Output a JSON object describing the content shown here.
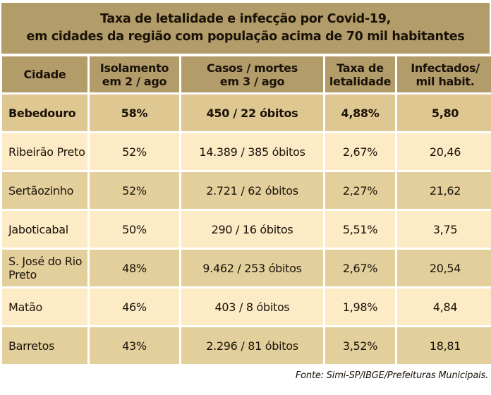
{
  "title": {
    "line1": "Taxa de letalidade e infecção por Covid-19,",
    "line2": "em cidades da região com população acima de 70 mil habitantes"
  },
  "colors": {
    "header": "#b29c6a",
    "highlight_row": "#dec791",
    "light_row": "#fdebc6",
    "dark_row": "#e3cf9c"
  },
  "table": {
    "headers": [
      {
        "l1": "Cidade",
        "l2": ""
      },
      {
        "l1": "Isolamento",
        "l2": "em 2 / ago"
      },
      {
        "l1": "Casos / mortes",
        "l2": "em 3 / ago"
      },
      {
        "l1": "Taxa de",
        "l2": "letalidade"
      },
      {
        "l1": "Infectados/",
        "l2": "mil habit."
      }
    ],
    "rows": [
      {
        "city": "Bebedouro",
        "isolamento": "58%",
        "casos": "450 / 22 óbitos",
        "taxa": "4,88%",
        "infectados": "5,80"
      },
      {
        "city": "Ribeirão Preto",
        "isolamento": "52%",
        "casos": "14.389 / 385 óbitos",
        "taxa": "2,67%",
        "infectados": "20,46"
      },
      {
        "city": "Sertãozinho",
        "isolamento": "52%",
        "casos": "2.721 / 62 óbitos",
        "taxa": "2,27%",
        "infectados": "21,62"
      },
      {
        "city": "Jaboticabal",
        "isolamento": "50%",
        "casos": "290 / 16 óbitos",
        "taxa": "5,51%",
        "infectados": "3,75"
      },
      {
        "city": "S. José do Rio Preto",
        "isolamento": "48%",
        "casos": "9.462 / 253 óbitos",
        "taxa": "2,67%",
        "infectados": "20,54"
      },
      {
        "city": "Matão",
        "isolamento": "46%",
        "casos": "403 / 8 óbitos",
        "taxa": "1,98%",
        "infectados": "4,84"
      },
      {
        "city": "Barretos",
        "isolamento": "43%",
        "casos": "2.296 / 81 óbitos",
        "taxa": "3,52%",
        "infectados": "18,81"
      }
    ]
  },
  "source": "Fonte: Simi-SP/IBGE/Prefeituras Municipais."
}
